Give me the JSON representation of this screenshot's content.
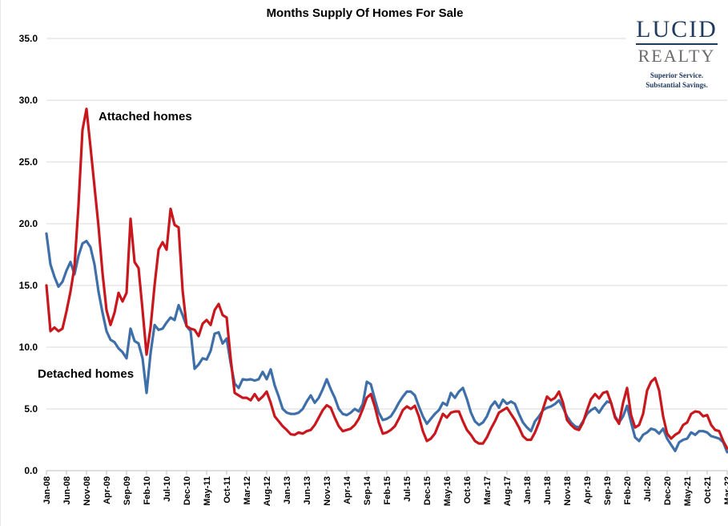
{
  "title": "Months Supply Of Homes For Sale",
  "annotations": {
    "attached_label": "Attached homes",
    "detached_label": "Detached homes"
  },
  "logo": {
    "brand_top": "LUCID",
    "brand_bottom": "REALTY",
    "tagline_line1": "Superior Service.",
    "tagline_line2": "Substantial Savings."
  },
  "colors": {
    "attached": "#c9171e",
    "detached": "#3e6fa8",
    "gridline": "#d9d9d9",
    "axis": "#bfbfbf",
    "text": "#000000",
    "logo_navy": "#203a60",
    "logo_gray": "#6a6b6e"
  },
  "chart_data": {
    "type": "line",
    "title": "Months Supply Of Homes For Sale",
    "xlabel": "",
    "ylabel": "",
    "x_unit": "monthly, Jan-2008 to Mar-2022",
    "x_tick_every_n_months": 5,
    "x_tick_labels": [
      "Jan-08",
      "Jun-08",
      "Nov-08",
      "Apr-09",
      "Sep-09",
      "Feb-10",
      "Jul-10",
      "Dec-10",
      "May-11",
      "Oct-11",
      "Mar-12",
      "Aug-12",
      "Jan-13",
      "Jun-13",
      "Nov-13",
      "Apr-14",
      "Sep-14",
      "Feb-15",
      "Jul-15",
      "Dec-15",
      "May-16",
      "Oct-16",
      "Mar-17",
      "Aug-17",
      "Jan-18",
      "Jun-18",
      "Nov-18",
      "Apr-19",
      "Sep-19",
      "Feb-20",
      "Jul-20",
      "Dec-20",
      "May-21",
      "Oct-21",
      "Mar-22"
    ],
    "y_tick_labels": [
      "0.0",
      "5.0",
      "10.0",
      "15.0",
      "20.0",
      "25.0",
      "30.0",
      "35.0"
    ],
    "ylim": [
      0,
      35
    ],
    "grid": "horizontal",
    "legend": "inline text annotations on chart",
    "series": [
      {
        "name": "Detached homes",
        "color": "#3e6fa8",
        "values": [
          19.2,
          16.7,
          15.7,
          14.9,
          15.3,
          16.2,
          16.9,
          15.9,
          17.4,
          18.4,
          18.6,
          18.1,
          16.7,
          14.5,
          12.8,
          11.3,
          10.6,
          10.4,
          9.9,
          9.6,
          9.1,
          11.5,
          10.5,
          10.3,
          9.1,
          6.3,
          9.5,
          11.8,
          11.4,
          11.5,
          12.0,
          12.4,
          12.2,
          13.4,
          12.6,
          11.7,
          11.3,
          8.25,
          8.6,
          9.1,
          9.0,
          9.7,
          11.1,
          11.2,
          10.3,
          10.7,
          8.7,
          7.05,
          6.7,
          7.4,
          7.35,
          7.4,
          7.3,
          7.4,
          8.0,
          7.4,
          8.2,
          6.9,
          6.0,
          5.0,
          4.7,
          4.6,
          4.6,
          4.7,
          5.0,
          5.6,
          6.1,
          5.5,
          5.9,
          6.6,
          7.4,
          6.6,
          5.9,
          5.0,
          4.6,
          4.5,
          4.7,
          5.0,
          4.8,
          5.4,
          7.2,
          7.0,
          5.8,
          4.7,
          4.1,
          4.2,
          4.4,
          4.9,
          5.5,
          6.0,
          6.4,
          6.4,
          6.1,
          5.2,
          4.4,
          3.8,
          4.2,
          4.6,
          4.9,
          5.5,
          5.3,
          6.3,
          5.9,
          6.4,
          6.7,
          5.8,
          4.7,
          4.0,
          3.7,
          3.9,
          4.4,
          5.2,
          5.6,
          5.1,
          5.75,
          5.4,
          5.6,
          5.4,
          4.6,
          3.9,
          3.5,
          3.2,
          4.0,
          4.4,
          4.9,
          5.1,
          5.2,
          5.4,
          5.7,
          5.1,
          4.4,
          3.9,
          3.6,
          3.5,
          4.0,
          4.6,
          4.9,
          5.1,
          4.7,
          5.2,
          5.6,
          5.5,
          4.4,
          3.9,
          4.4,
          5.25,
          3.9,
          2.7,
          2.4,
          2.9,
          3.1,
          3.4,
          3.3,
          3.0,
          3.4,
          2.6,
          2.1,
          1.6,
          2.3,
          2.5,
          2.6,
          3.1,
          2.9,
          3.2,
          3.2,
          3.1,
          2.8,
          2.7,
          2.6,
          2.3,
          1.5
        ]
      },
      {
        "name": "Attached homes",
        "color": "#c9171e",
        "values": [
          15.0,
          11.3,
          11.6,
          11.3,
          11.5,
          12.9,
          14.5,
          16.5,
          21.5,
          27.6,
          29.3,
          26.2,
          23.0,
          19.8,
          16.0,
          13.0,
          11.8,
          12.8,
          14.4,
          13.7,
          14.4,
          20.4,
          16.9,
          16.4,
          13.0,
          9.4,
          11.6,
          15.0,
          17.9,
          18.5,
          17.9,
          21.2,
          19.9,
          19.7,
          14.6,
          11.7,
          11.5,
          11.4,
          10.9,
          11.9,
          12.2,
          11.8,
          13.0,
          13.5,
          12.6,
          12.4,
          9.1,
          6.3,
          6.1,
          5.9,
          5.9,
          5.7,
          6.2,
          5.7,
          6.0,
          6.4,
          5.5,
          4.4,
          4.0,
          3.6,
          3.3,
          2.95,
          2.9,
          3.1,
          3.0,
          3.2,
          3.3,
          3.7,
          4.3,
          4.9,
          5.3,
          5.1,
          4.3,
          3.6,
          3.2,
          3.3,
          3.4,
          3.7,
          4.2,
          5.0,
          5.9,
          6.2,
          5.2,
          3.9,
          3.0,
          3.1,
          3.3,
          3.6,
          4.2,
          4.9,
          5.2,
          5.0,
          5.25,
          4.4,
          3.2,
          2.4,
          2.6,
          3.0,
          3.8,
          4.6,
          4.3,
          4.7,
          4.8,
          4.8,
          4.0,
          3.3,
          2.9,
          2.4,
          2.2,
          2.2,
          2.7,
          3.4,
          4.0,
          4.7,
          4.9,
          5.1,
          4.6,
          4.1,
          3.5,
          2.8,
          2.5,
          2.5,
          3.1,
          3.9,
          5.0,
          6.0,
          5.7,
          5.9,
          6.4,
          5.5,
          4.1,
          3.7,
          3.4,
          3.3,
          3.9,
          4.9,
          5.8,
          6.2,
          5.85,
          6.3,
          6.4,
          5.5,
          4.3,
          3.8,
          5.5,
          6.7,
          4.5,
          3.5,
          3.7,
          4.6,
          6.5,
          7.2,
          7.5,
          6.5,
          4.4,
          3.0,
          2.6,
          2.9,
          3.1,
          3.7,
          3.9,
          4.6,
          4.8,
          4.75,
          4.4,
          4.5,
          3.7,
          3.3,
          3.2,
          2.4,
          1.8
        ]
      }
    ]
  }
}
